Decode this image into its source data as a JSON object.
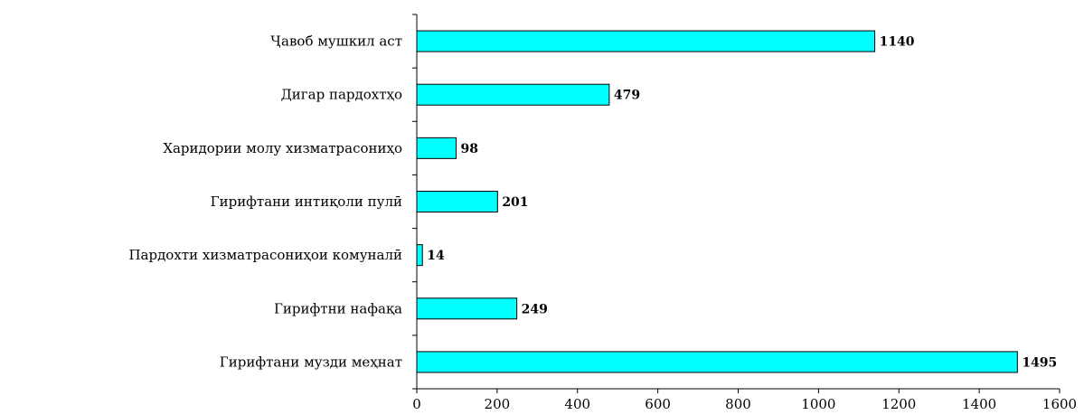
{
  "chart_data": {
    "type": "bar",
    "orientation": "horizontal",
    "categories": [
      "Ҷавоб мушкил аст",
      "Дигар пардохтҳо",
      "Харидории молу хизматрасониҳо",
      "Гирифтани интиқоли пулӣ",
      "Пардохти хизматрасониҳои  комуналӣ",
      "Гирифтни нафақа",
      "Гирифтани музди меҳнат"
    ],
    "values": [
      1140,
      479,
      98,
      201,
      14,
      249,
      1495
    ],
    "data_labels": [
      "1140",
      "479",
      "98",
      "201",
      "14",
      "249",
      "1495"
    ],
    "x_ticks": [
      "0",
      "200",
      "400",
      "600",
      "800",
      "1000",
      "1200",
      "1400",
      "1600"
    ],
    "xlim": [
      0,
      1600
    ],
    "grid": false,
    "legend": "none",
    "bar_color": "#00ffff",
    "bar_edge_color": "#000000"
  }
}
